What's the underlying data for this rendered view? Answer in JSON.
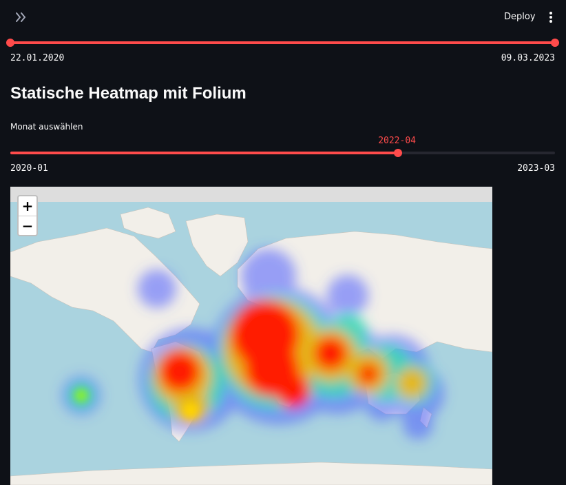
{
  "header": {
    "deploy_label": "Deploy",
    "menu_icon": "vertical-dots-icon",
    "sidebar_icon": "double-chevron-right-icon"
  },
  "date_slider": {
    "start_label": "22.01.2020",
    "end_label": "09.03.2023",
    "start_fraction": 0.0,
    "end_fraction": 1.0
  },
  "title": "Statische Heatmap mit Folium",
  "month_slider": {
    "label": "Monat auswählen",
    "value_label": "2022-04",
    "min_label": "2020-01",
    "max_label": "2023-03",
    "value_fraction": 0.712
  },
  "map": {
    "zoom_in": "+",
    "zoom_out": "−"
  },
  "colors": {
    "accent": "#ff4b4b",
    "background": "#0e1117",
    "ocean": "#aad3df",
    "land": "#f2efe9"
  }
}
